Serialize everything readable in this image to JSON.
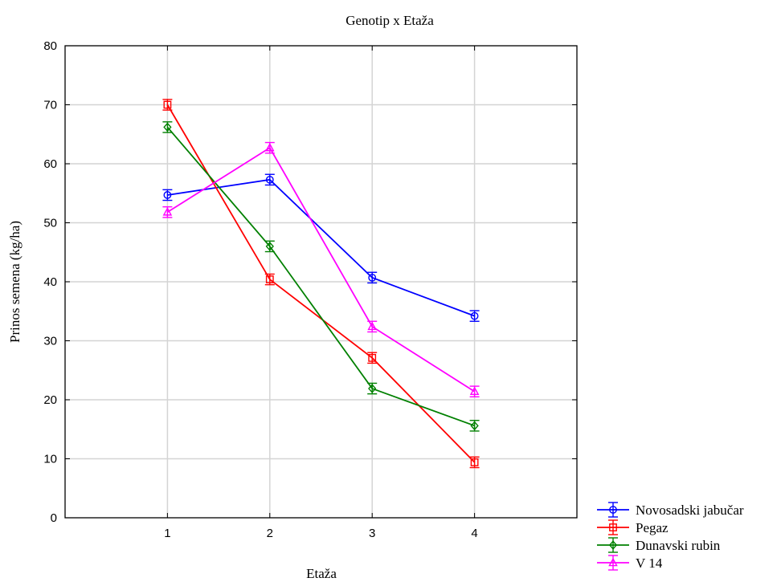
{
  "chart_data": {
    "type": "line",
    "title": "Genotip x Etaža",
    "xlabel": "Etaža",
    "ylabel": "Prinos semena (kg/ha)",
    "x": [
      1,
      2,
      3,
      4
    ],
    "x_ticks": [
      "1",
      "2",
      "3",
      "4"
    ],
    "xlim": [
      0,
      5
    ],
    "ylim": [
      0,
      80
    ],
    "y_ticks": [
      "0",
      "10",
      "20",
      "30",
      "40",
      "50",
      "60",
      "70",
      "80"
    ],
    "grid": true,
    "legend_position": "bottom-right outside",
    "series": [
      {
        "name": "Novosadski jabučar",
        "color": "#0000ff",
        "marker": "circle",
        "values": [
          54.7,
          57.3,
          40.7,
          34.2
        ],
        "error": [
          0.9,
          0.9,
          0.9,
          0.9
        ]
      },
      {
        "name": "Pegaz",
        "color": "#ff0000",
        "marker": "square",
        "values": [
          70.0,
          40.4,
          27.1,
          9.4
        ],
        "error": [
          0.9,
          0.9,
          0.9,
          0.9
        ]
      },
      {
        "name": "Dunavski rubin",
        "color": "#008000",
        "marker": "diamond",
        "values": [
          66.2,
          46.0,
          21.9,
          15.6
        ],
        "error": [
          0.9,
          0.9,
          0.9,
          0.9
        ]
      },
      {
        "name": "V 14",
        "color": "#ff00ff",
        "marker": "triangle",
        "values": [
          51.8,
          62.7,
          32.4,
          21.4
        ],
        "error": [
          0.9,
          0.9,
          0.9,
          0.9
        ]
      }
    ]
  }
}
